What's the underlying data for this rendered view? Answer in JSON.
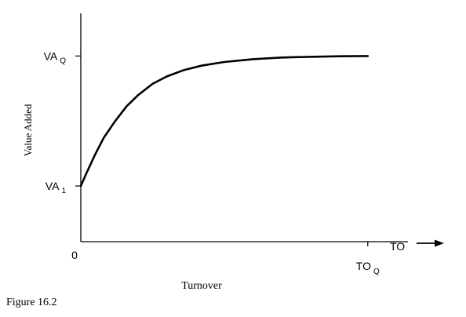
{
  "caption": "Figure 16.2",
  "chart_data": {
    "type": "line",
    "title": "",
    "xlabel": "Turnover",
    "ylabel": "Value Added",
    "x_axis_end_label": "TO",
    "origin_label": "0",
    "x_ticks": [
      {
        "value": 1,
        "main": "TO",
        "sub": "Q"
      }
    ],
    "y_ticks": [
      {
        "value": 0.3,
        "main": "VA",
        "sub": "1"
      },
      {
        "value": 1,
        "main": "VA",
        "sub": "Q"
      }
    ],
    "xlim": [
      0,
      1.14
    ],
    "ylim": [
      0,
      1.23
    ],
    "grid": false,
    "series": [
      {
        "x": [
          0,
          0.02,
          0.05,
          0.08,
          0.12,
          0.16,
          0.2,
          0.25,
          0.3,
          0.36,
          0.42,
          0.5,
          0.6,
          0.7,
          0.8,
          0.9,
          1.0
        ],
        "y": [
          0.3,
          0.37,
          0.47,
          0.56,
          0.65,
          0.73,
          0.79,
          0.85,
          0.89,
          0.925,
          0.948,
          0.968,
          0.983,
          0.992,
          0.996,
          0.999,
          1.0
        ]
      }
    ]
  }
}
